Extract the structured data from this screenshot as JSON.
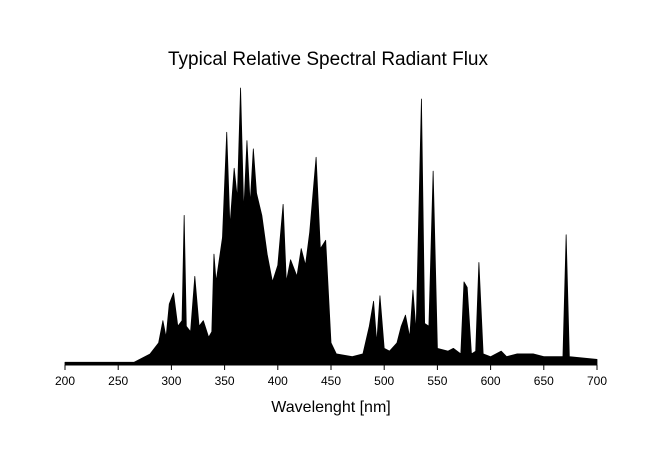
{
  "chart_data": {
    "type": "area",
    "title": "Typical Relative Spectral Radiant Flux",
    "xlabel": "Wavelenght [nm]",
    "color": "#000000",
    "xlim": [
      200,
      700
    ],
    "xticks": [
      200,
      250,
      300,
      350,
      400,
      450,
      500,
      550,
      600,
      650,
      700
    ],
    "ylim": [
      0,
      100
    ],
    "x": [
      200,
      265,
      270,
      280,
      288,
      292,
      295,
      298,
      302,
      306,
      310,
      312,
      314,
      318,
      322,
      326,
      330,
      335,
      338,
      340,
      342,
      345,
      348,
      352,
      355,
      359,
      362,
      365,
      368,
      371,
      374,
      377,
      380,
      385,
      390,
      395,
      400,
      405,
      408,
      412,
      418,
      422,
      426,
      430,
      436,
      440,
      445,
      450,
      455,
      470,
      480,
      486,
      490,
      493,
      496,
      500,
      505,
      512,
      516,
      520,
      524,
      527,
      530,
      535,
      538,
      542,
      546,
      550,
      560,
      565,
      572,
      575,
      578,
      582,
      586,
      589,
      593,
      600,
      610,
      615,
      625,
      640,
      650,
      660,
      668,
      671,
      674,
      700
    ],
    "values": [
      1,
      1,
      2,
      4,
      8,
      16,
      10,
      22,
      26,
      14,
      16,
      54,
      14,
      12,
      32,
      14,
      16,
      10,
      12,
      40,
      30,
      38,
      46,
      84,
      50,
      71,
      60,
      100,
      55,
      81,
      58,
      78,
      62,
      54,
      40,
      30,
      36,
      58,
      30,
      38,
      32,
      42,
      36,
      48,
      75,
      42,
      45,
      8,
      4,
      3,
      4,
      14,
      23,
      8,
      25,
      6,
      5,
      8,
      14,
      18,
      10,
      27,
      12,
      96,
      15,
      14,
      70,
      6,
      5,
      6,
      4,
      30,
      28,
      4,
      5,
      37,
      4,
      3,
      5,
      3,
      4,
      4,
      3,
      3,
      3,
      47,
      3,
      2
    ]
  }
}
